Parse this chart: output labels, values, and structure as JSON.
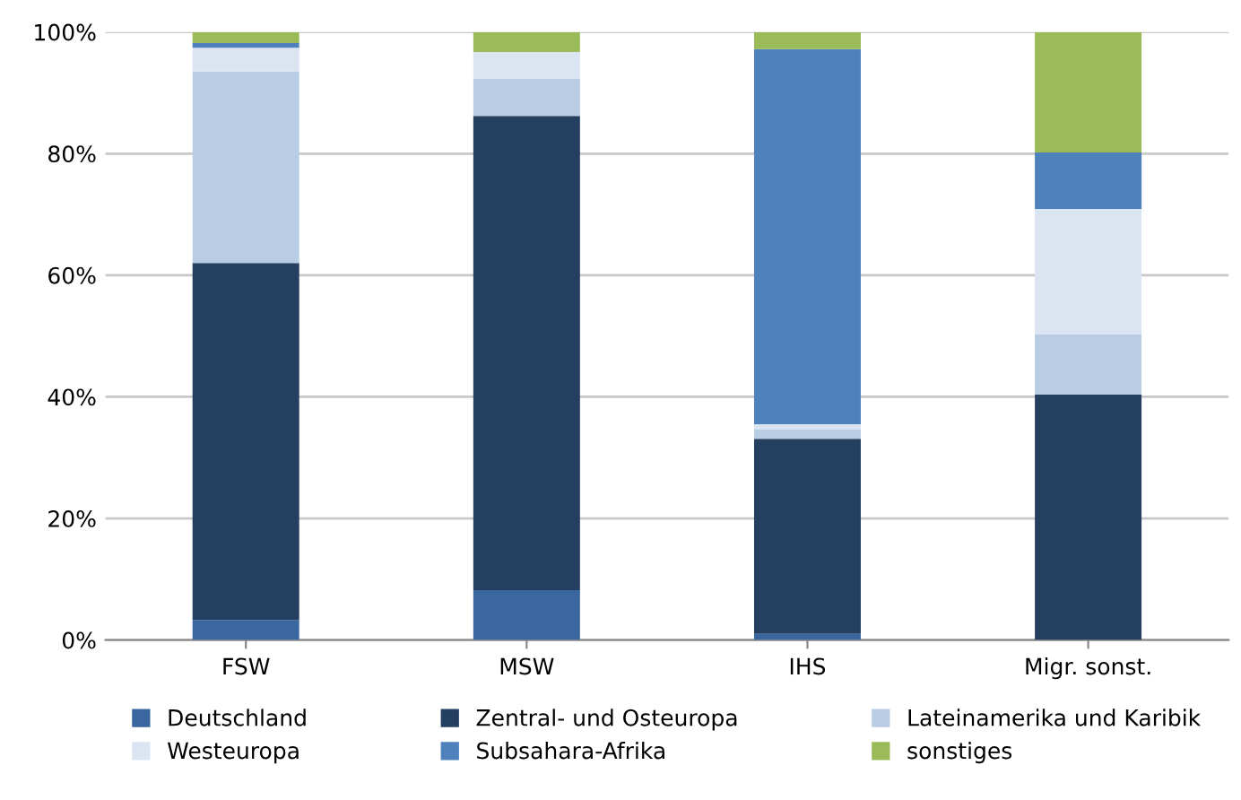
{
  "chart_data": {
    "type": "bar",
    "stacked": true,
    "categories": [
      "FSW",
      "MSW",
      "IHS",
      "Migr. sonst."
    ],
    "series": [
      {
        "name": "Deutschland",
        "color": "#3a67a0",
        "values": [
          3.3,
          8.2,
          1.0,
          0
        ]
      },
      {
        "name": "Zentral- und Osteuropa",
        "color": "#243f60",
        "values": [
          58.7,
          78.0,
          32.1,
          40.4
        ]
      },
      {
        "name": "Lateinamerika und Karibik",
        "color": "#b8cce4",
        "values": [
          31.5,
          6.1,
          1.5,
          9.9
        ]
      },
      {
        "name": "Westeuropa",
        "color": "#dbe5f1",
        "values": [
          3.9,
          4.4,
          0.9,
          20.6
        ]
      },
      {
        "name": "Subsahara-Afrika",
        "color": "#4f81bd",
        "values": [
          0.8,
          0,
          61.7,
          9.3
        ]
      },
      {
        "name": "sonstiges",
        "color": "#9bbb59",
        "values": [
          1.8,
          3.3,
          2.8,
          19.8
        ]
      }
    ],
    "ylim": [
      0,
      100
    ],
    "yticks": [
      {
        "value": 0,
        "label": "0%"
      },
      {
        "value": 20,
        "label": "20%"
      },
      {
        "value": 40,
        "label": "40%"
      },
      {
        "value": 60,
        "label": "60%"
      },
      {
        "value": 80,
        "label": "80%"
      },
      {
        "value": 100,
        "label": "100%"
      }
    ],
    "grid": "y",
    "legend": "bottom"
  }
}
